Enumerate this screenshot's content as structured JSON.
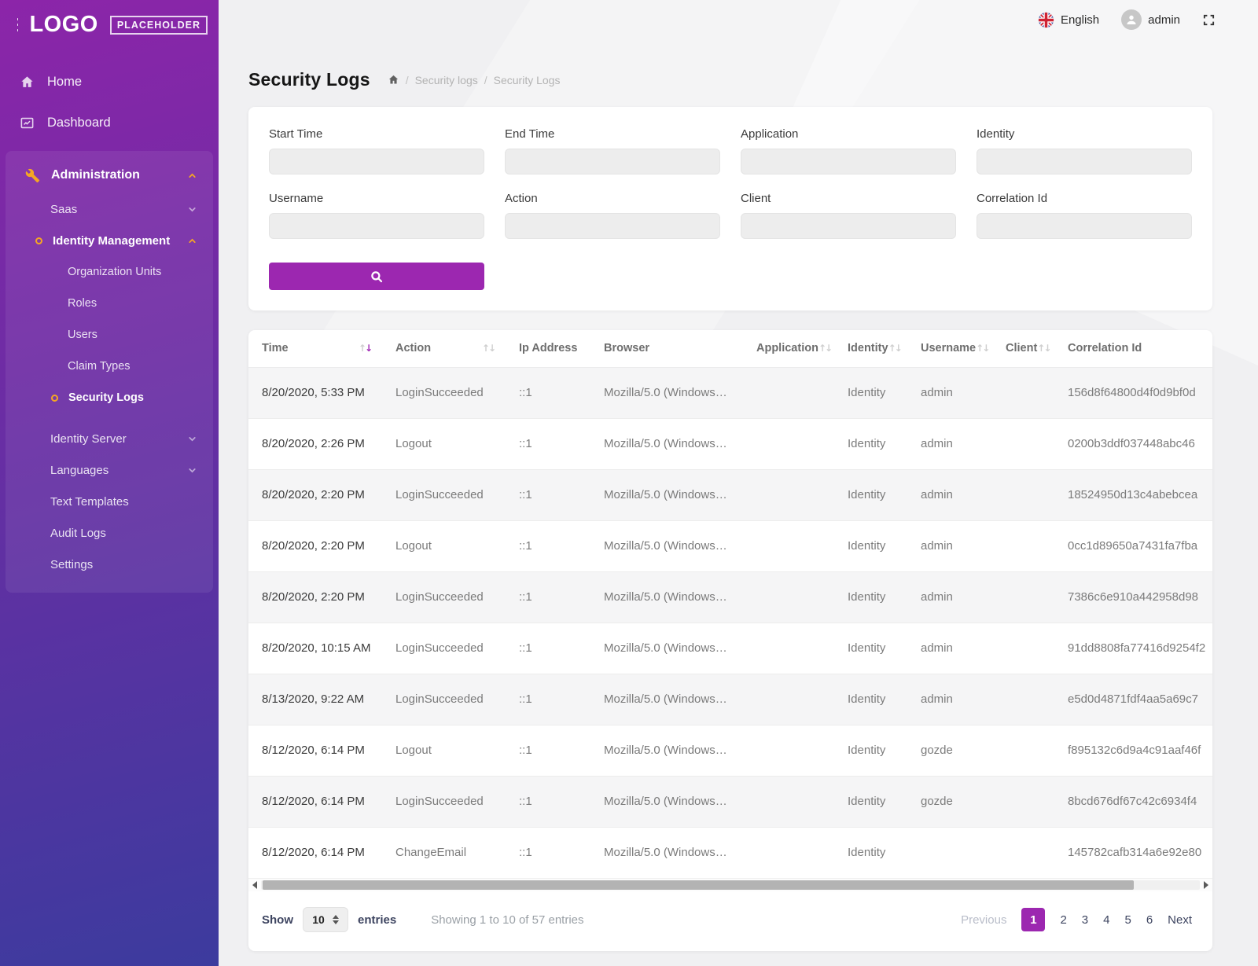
{
  "sidebar": {
    "logo_text": "LOGO",
    "logo_badge": "PLACEHOLDER",
    "top_items": [
      {
        "label": "Home",
        "icon": "home-icon"
      },
      {
        "label": "Dashboard",
        "icon": "dashboard-icon"
      }
    ],
    "admin_group": [
      {
        "label": "Administration",
        "icon": "wrench-icon",
        "chevron": "up",
        "chevron_accent": true,
        "level": 0,
        "emphasis": true
      },
      {
        "label": "Saas",
        "chevron": "down",
        "level": 1
      },
      {
        "label": "Identity Management",
        "bullet": true,
        "chevron": "up",
        "chevron_accent": true,
        "level": 1,
        "emphasis": true
      },
      {
        "label": "Organization Units",
        "level": 2
      },
      {
        "label": "Roles",
        "level": 2
      },
      {
        "label": "Users",
        "level": 2
      },
      {
        "label": "Claim Types",
        "level": 2
      },
      {
        "label": "Security Logs",
        "bullet": true,
        "level": 2,
        "active": true,
        "gap_after": true
      },
      {
        "label": "Identity Server",
        "chevron": "down",
        "level": 1
      },
      {
        "label": "Languages",
        "chevron": "down",
        "level": 1
      },
      {
        "label": "Text Templates",
        "level": 1
      },
      {
        "label": "Audit Logs",
        "level": 1
      },
      {
        "label": "Settings",
        "level": 1
      }
    ]
  },
  "topbar": {
    "language": "English",
    "user": "admin"
  },
  "page": {
    "title": "Security Logs",
    "breadcrumb": [
      "Security logs",
      "Security Logs"
    ]
  },
  "filters": {
    "fields": [
      "Start Time",
      "End Time",
      "Application",
      "Identity",
      "Username",
      "Action",
      "Client",
      "Correlation Id"
    ]
  },
  "table": {
    "columns": [
      {
        "label": "Time",
        "sortable": true,
        "sorted": "desc"
      },
      {
        "label": "Action",
        "sortable": true
      },
      {
        "label": "Ip Address"
      },
      {
        "label": "Browser"
      },
      {
        "label": "Application",
        "sortable": true
      },
      {
        "label": "Identity",
        "sortable": true
      },
      {
        "label": "Username",
        "sortable": true
      },
      {
        "label": "Client",
        "sortable": true
      },
      {
        "label": "Correlation Id"
      }
    ],
    "rows": [
      [
        "8/20/2020, 5:33 PM",
        "LoginSucceeded",
        "::1",
        "Mozilla/5.0 (Windows…",
        "",
        "Identity",
        "admin",
        "",
        "156d8f64800d4f0d9bf0d"
      ],
      [
        "8/20/2020, 2:26 PM",
        "Logout",
        "::1",
        "Mozilla/5.0 (Windows…",
        "",
        "Identity",
        "admin",
        "",
        "0200b3ddf037448abc46"
      ],
      [
        "8/20/2020, 2:20 PM",
        "LoginSucceeded",
        "::1",
        "Mozilla/5.0 (Windows…",
        "",
        "Identity",
        "admin",
        "",
        "18524950d13c4abebcea"
      ],
      [
        "8/20/2020, 2:20 PM",
        "Logout",
        "::1",
        "Mozilla/5.0 (Windows…",
        "",
        "Identity",
        "admin",
        "",
        "0cc1d89650a7431fa7fba"
      ],
      [
        "8/20/2020, 2:20 PM",
        "LoginSucceeded",
        "::1",
        "Mozilla/5.0 (Windows…",
        "",
        "Identity",
        "admin",
        "",
        "7386c6e910a442958d98"
      ],
      [
        "8/20/2020, 10:15 AM",
        "LoginSucceeded",
        "::1",
        "Mozilla/5.0 (Windows…",
        "",
        "Identity",
        "admin",
        "",
        "91dd8808fa77416d9254f2"
      ],
      [
        "8/13/2020, 9:22 AM",
        "LoginSucceeded",
        "::1",
        "Mozilla/5.0 (Windows…",
        "",
        "Identity",
        "admin",
        "",
        "e5d0d4871fdf4aa5a69c7"
      ],
      [
        "8/12/2020, 6:14 PM",
        "Logout",
        "::1",
        "Mozilla/5.0 (Windows…",
        "",
        "Identity",
        "gozde",
        "",
        "f895132c6d9a4c91aaf46f"
      ],
      [
        "8/12/2020, 6:14 PM",
        "LoginSucceeded",
        "::1",
        "Mozilla/5.0 (Windows…",
        "",
        "Identity",
        "gozde",
        "",
        "8bcd676df67c42c6934f4"
      ],
      [
        "8/12/2020, 6:14 PM",
        "ChangeEmail",
        "::1",
        "Mozilla/5.0 (Windows…",
        "",
        "Identity",
        "",
        "",
        "145782cafb314a6e92e80"
      ]
    ]
  },
  "footer": {
    "show_label": "Show",
    "page_size": "10",
    "entries_label": "entries",
    "summary": "Showing 1 to 10 of 57 entries",
    "previous_label": "Previous",
    "pages": [
      "1",
      "2",
      "3",
      "4",
      "5",
      "6"
    ],
    "active_page": "1",
    "next_label": "Next"
  },
  "colors": {
    "accent": "#9c27b0",
    "orange": "#f5a623",
    "sidebar_top": "#8c25a9",
    "sidebar_bottom": "#3c3b9e"
  }
}
